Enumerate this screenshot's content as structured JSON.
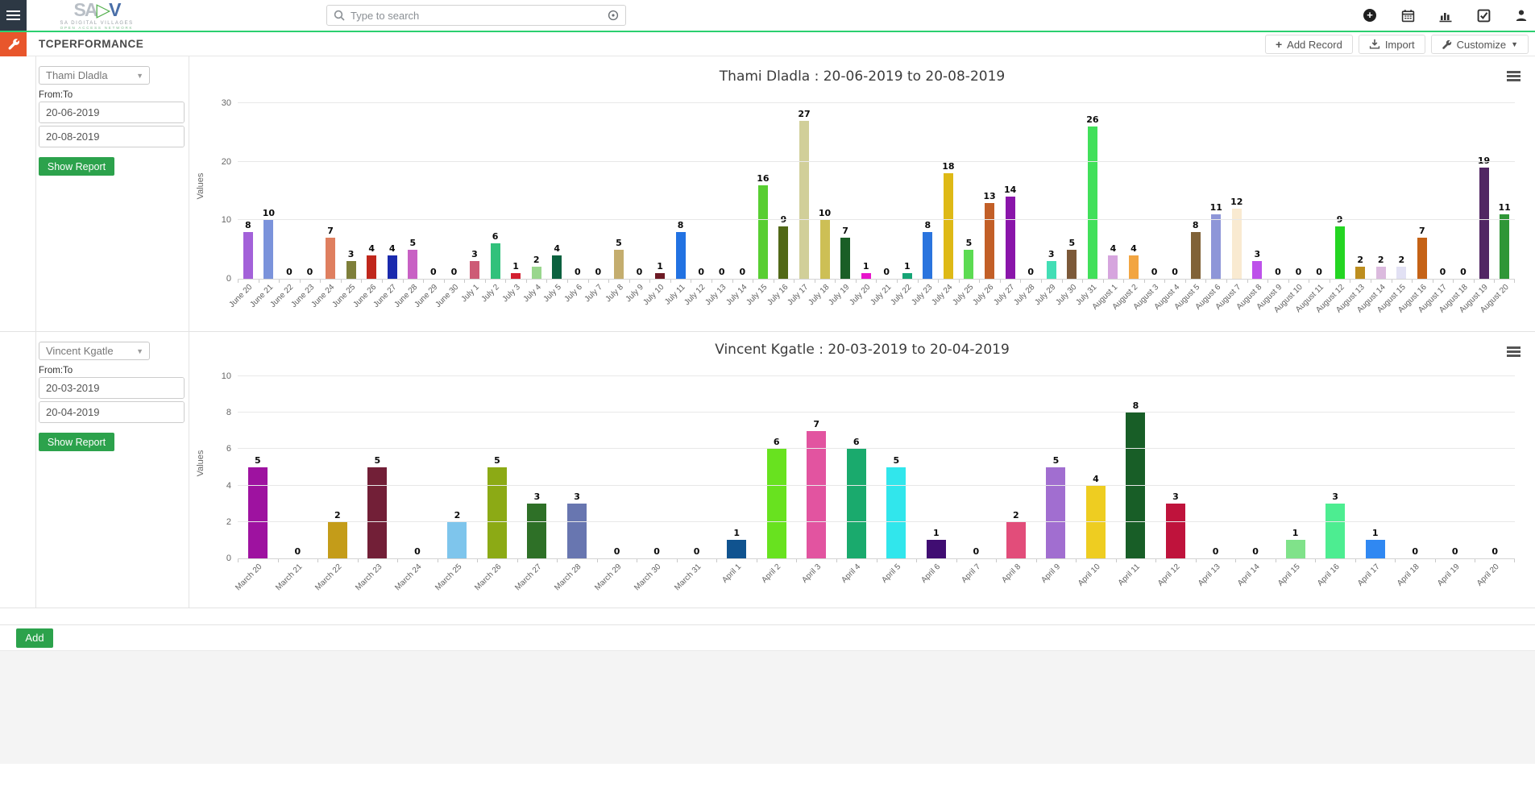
{
  "navbar": {
    "logo": {
      "text": "SADV",
      "subtitle": "SA DIGITAL VILLAGES",
      "subtitle2": "OPEN ACCESS NETWORK"
    },
    "search": {
      "placeholder": "Type to search"
    },
    "icons": [
      "plus-circle-icon",
      "calendar-icon",
      "bar-chart-icon",
      "tasks-icon",
      "user-icon"
    ]
  },
  "toolbar": {
    "title": "TCPERFORMANCE",
    "add_record_label": "Add Record",
    "import_label": "Import",
    "customize_label": "Customize"
  },
  "rows": [
    {
      "select_value": "Thami Dladla",
      "from_to_label": "From:To",
      "from": "20-06-2019",
      "to": "20-08-2019",
      "show_report_label": "Show Report"
    },
    {
      "select_value": "Vincent Kgatle",
      "from_to_label": "From:To",
      "from": "20-03-2019",
      "to": "20-04-2019",
      "show_report_label": "Show Report"
    }
  ],
  "footer": {
    "add_label": "Add"
  },
  "accent_colors": {
    "green_line": "#2bd06f",
    "button_green": "#2ca24c",
    "wrench_orange": "#e8562c",
    "navbar_dark": "#2d3844"
  },
  "chart_data": [
    {
      "type": "bar",
      "title": "Thami Dladla : 20-06-2019 to 20-08-2019",
      "xlabel": "",
      "ylabel": "Values",
      "ylim": [
        0,
        30
      ],
      "yticks": [
        0,
        10,
        20,
        30
      ],
      "grid": "on",
      "legend": "none",
      "xlabel_rotation": -45,
      "categories": [
        "June 20",
        "June 21",
        "June 22",
        "June 23",
        "June 24",
        "June 25",
        "June 26",
        "June 27",
        "June 28",
        "June 29",
        "June 30",
        "July 1",
        "July 2",
        "July 3",
        "July 4",
        "July 5",
        "July 6",
        "July 7",
        "July 8",
        "July 9",
        "July 10",
        "July 11",
        "July 12",
        "July 13",
        "July 14",
        "July 15",
        "July 16",
        "July 17",
        "July 18",
        "July 19",
        "July 20",
        "July 21",
        "July 22",
        "July 23",
        "July 24",
        "July 25",
        "July 26",
        "July 27",
        "July 28",
        "July 29",
        "July 30",
        "July 31",
        "August 1",
        "August 2",
        "August 3",
        "August 4",
        "August 5",
        "August 6",
        "August 7",
        "August 8",
        "August 9",
        "August 10",
        "August 11",
        "August 12",
        "August 13",
        "August 14",
        "August 15",
        "August 16",
        "August 17",
        "August 18",
        "August 19",
        "August 20"
      ],
      "values": [
        8,
        10,
        0,
        0,
        7,
        3,
        4,
        4,
        5,
        0,
        0,
        3,
        6,
        1,
        2,
        4,
        0,
        0,
        5,
        0,
        1,
        8,
        0,
        0,
        0,
        16,
        9,
        27,
        10,
        7,
        1,
        0,
        1,
        8,
        18,
        5,
        13,
        14,
        0,
        3,
        5,
        26,
        4,
        4,
        0,
        0,
        8,
        11,
        12,
        3,
        0,
        0,
        0,
        9,
        2,
        2,
        2,
        7,
        0,
        0,
        19,
        11
      ],
      "colors": [
        "#a361d9",
        "#7b93db",
        "",
        "",
        "#df7f5f",
        "#7e7f3a",
        "#c0271c",
        "#1a2aad",
        "#c861c4",
        "",
        "",
        "#cd5b76",
        "#31c17b",
        "#d31f30",
        "#99d68d",
        "#0c613f",
        "",
        "",
        "#c4ad6e",
        "",
        "#6d1a24",
        "#2272e2",
        "",
        "",
        "",
        "#58ce32",
        "#516817",
        "#d1cf99",
        "#cdbf55",
        "#1a5e26",
        "#e715cb",
        "",
        "#15a475",
        "#2a74de",
        "#deb916",
        "#5cdb52",
        "#c25f27",
        "#8a15aa",
        "",
        "#42deb5",
        "#7c5939",
        "#41e05a",
        "#d6a5de",
        "#f2a541",
        "",
        "",
        "#806238",
        "#8e96d8",
        "#f9ead1",
        "#bd51ea",
        "",
        "",
        "",
        "#24d522",
        "#bd8e1f",
        "#dbbade",
        "#e2e1f4",
        "#c56216",
        "",
        "",
        "#512663",
        "#2f9637"
      ]
    },
    {
      "type": "bar",
      "title": "Vincent Kgatle : 20-03-2019 to 20-04-2019",
      "xlabel": "",
      "ylabel": "Values",
      "ylim": [
        0,
        10
      ],
      "yticks": [
        0,
        2,
        4,
        6,
        8,
        10
      ],
      "grid": "on",
      "legend": "none",
      "xlabel_rotation": -45,
      "categories": [
        "March 20",
        "March 21",
        "March 22",
        "March 23",
        "March 24",
        "March 25",
        "March 26",
        "March 27",
        "March 28",
        "March 29",
        "March 30",
        "March 31",
        "April 1",
        "April 2",
        "April 3",
        "April 4",
        "April 5",
        "April 6",
        "April 7",
        "April 8",
        "April 9",
        "April 10",
        "April 11",
        "April 12",
        "April 13",
        "April 14",
        "April 15",
        "April 16",
        "April 17",
        "April 18",
        "April 19",
        "April 20"
      ],
      "values": [
        5,
        0,
        2,
        5,
        0,
        2,
        5,
        3,
        3,
        0,
        0,
        0,
        1,
        6,
        7,
        6,
        5,
        1,
        0,
        2,
        5,
        4,
        8,
        3,
        0,
        0,
        1,
        3,
        1,
        0,
        0,
        0
      ],
      "colors": [
        "#9e12a0",
        "",
        "#c49c19",
        "#721f37",
        "",
        "#7ec5ec",
        "#8caa15",
        "#2e7027",
        "#6876b0",
        "",
        "",
        "",
        "#10538f",
        "#68e21f",
        "#e254a0",
        "#1aaa6d",
        "#31e6ec",
        "#400d72",
        "",
        "#e24d7a",
        "#a16ed0",
        "#eecd21",
        "#185e27",
        "#bf133c",
        "",
        "",
        "#80e28a",
        "#4ded91",
        "#3088f2",
        "",
        "",
        ""
      ]
    }
  ]
}
